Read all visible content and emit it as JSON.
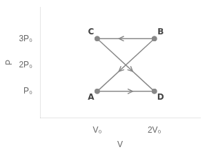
{
  "chart_data": {
    "type": "line",
    "xlabel": "V",
    "ylabel": "P",
    "color": "#888888",
    "marker": "o",
    "line_style": "solid",
    "grid": false,
    "xlim": [
      0.0,
      2.8
    ],
    "xticks": [
      {
        "value": 1,
        "label": "V₀"
      },
      {
        "value": 2,
        "label": "2V₀"
      }
    ],
    "ylim": [
      0.0,
      4.2
    ],
    "yticks": [
      {
        "value": 1,
        "label": "P₀"
      },
      {
        "value": 2,
        "label": "2P₀"
      },
      {
        "value": 3,
        "label": "3P₀"
      }
    ],
    "series": [
      {
        "x": [
          2,
          1
        ],
        "values": [
          3,
          3
        ]
      },
      {
        "x": [
          1,
          2
        ],
        "values": [
          1,
          1
        ]
      },
      {
        "x": [
          1,
          2
        ],
        "values": [
          3,
          1
        ]
      },
      {
        "x": [
          2,
          1
        ],
        "values": [
          3,
          1
        ]
      }
    ],
    "annotations": [
      {
        "text": "A",
        "x": 1,
        "y": 1
      },
      {
        "text": "B",
        "x": 2,
        "y": 3
      },
      {
        "text": "C",
        "x": 1,
        "y": 3
      },
      {
        "text": "D",
        "x": 2,
        "y": 1
      }
    ]
  }
}
